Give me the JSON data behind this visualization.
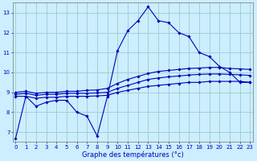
{
  "xlabel": "Graphe des températures (°c)",
  "background_color": "#cceeff",
  "grid_color": "#99cccc",
  "line_color": "#0000bb",
  "x_ticks": [
    0,
    1,
    2,
    3,
    4,
    5,
    6,
    7,
    8,
    9,
    10,
    11,
    12,
    13,
    14,
    15,
    16,
    17,
    18,
    19,
    20,
    21,
    22,
    23
  ],
  "ylim": [
    6.5,
    13.5
  ],
  "xlim": [
    -0.3,
    23.3
  ],
  "yticks": [
    7,
    8,
    9,
    10,
    11,
    12,
    13
  ],
  "series": [
    {
      "x": [
        0,
        1,
        2,
        3,
        4,
        5,
        6,
        7,
        8,
        9,
        10,
        11,
        12,
        13,
        14,
        15,
        16,
        17,
        18,
        19,
        20,
        21,
        22,
        23
      ],
      "y": [
        6.7,
        8.8,
        8.3,
        8.5,
        8.6,
        8.6,
        8.0,
        7.8,
        6.8,
        8.8,
        11.1,
        12.1,
        12.6,
        13.3,
        12.6,
        12.5,
        12.0,
        11.8,
        11.0,
        10.8,
        10.3,
        10.0,
        9.5,
        9.5
      ]
    },
    {
      "x": [
        0,
        1,
        2,
        3,
        4,
        5,
        6,
        7,
        8,
        9,
        10,
        11,
        12,
        13,
        14,
        15,
        16,
        17,
        18,
        19,
        20,
        21,
        22,
        23
      ],
      "y": [
        8.8,
        8.8,
        8.7,
        8.75,
        8.75,
        8.8,
        8.8,
        8.8,
        8.82,
        8.85,
        9.0,
        9.1,
        9.2,
        9.3,
        9.35,
        9.4,
        9.45,
        9.5,
        9.5,
        9.55,
        9.55,
        9.55,
        9.55,
        9.5
      ]
    },
    {
      "x": [
        0,
        1,
        2,
        3,
        4,
        5,
        6,
        7,
        8,
        9,
        10,
        11,
        12,
        13,
        14,
        15,
        16,
        17,
        18,
        19,
        20,
        21,
        22,
        23
      ],
      "y": [
        8.9,
        8.95,
        8.85,
        8.9,
        8.9,
        8.95,
        8.95,
        8.95,
        8.97,
        9.0,
        9.2,
        9.35,
        9.5,
        9.65,
        9.72,
        9.78,
        9.82,
        9.87,
        9.9,
        9.92,
        9.92,
        9.9,
        9.88,
        9.85
      ]
    },
    {
      "x": [
        0,
        1,
        2,
        3,
        4,
        5,
        6,
        7,
        8,
        9,
        10,
        11,
        12,
        13,
        14,
        15,
        16,
        17,
        18,
        19,
        20,
        21,
        22,
        23
      ],
      "y": [
        9.0,
        9.05,
        8.95,
        9.0,
        9.0,
        9.05,
        9.05,
        9.1,
        9.12,
        9.2,
        9.45,
        9.65,
        9.8,
        9.95,
        10.05,
        10.1,
        10.15,
        10.2,
        10.22,
        10.25,
        10.25,
        10.2,
        10.18,
        10.15
      ]
    }
  ]
}
